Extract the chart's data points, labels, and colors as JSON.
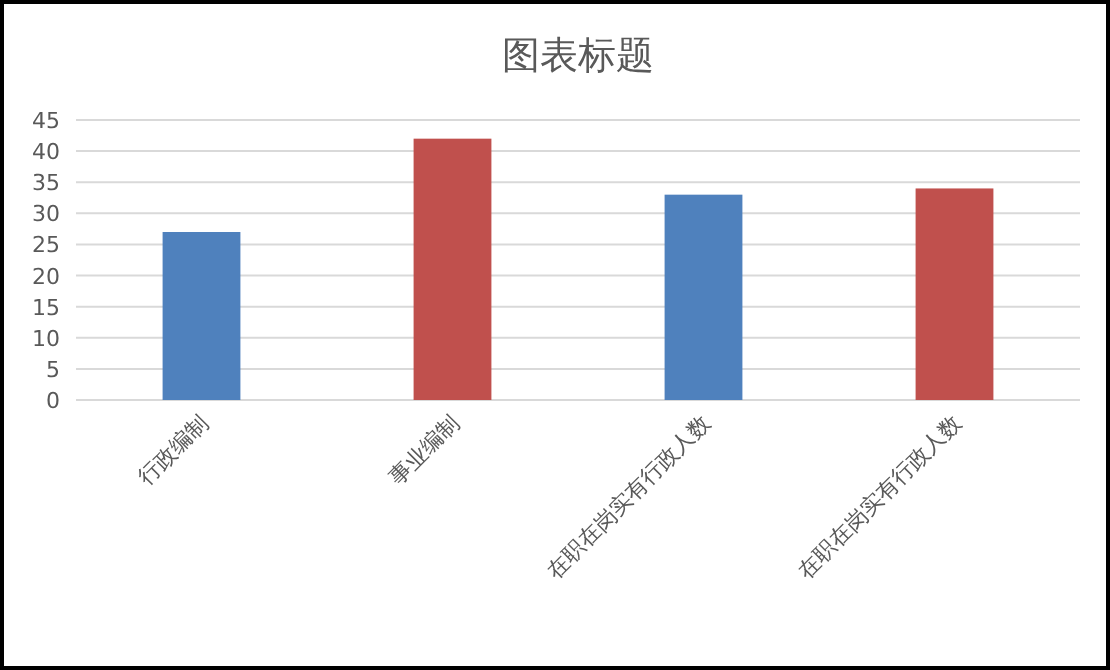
{
  "chart_data": {
    "type": "bar",
    "title": "图表标题",
    "categories": [
      "行政编制",
      "事业编制",
      "在职在岗实有行政人数",
      "在职在岗实有行政人数"
    ],
    "values": [
      27,
      42,
      33,
      34
    ],
    "colors": [
      "#4f81bd",
      "#c0504d",
      "#4f81bd",
      "#c0504d"
    ],
    "ylim": [
      0,
      45
    ],
    "yticks": [
      0,
      5,
      10,
      15,
      20,
      25,
      30,
      35,
      40,
      45
    ],
    "grid": "y"
  }
}
